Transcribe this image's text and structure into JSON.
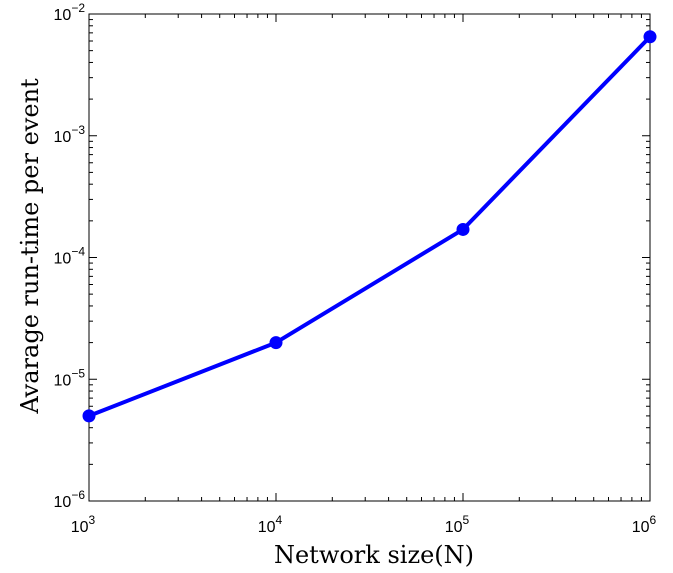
{
  "chart_data": {
    "type": "line",
    "title": "",
    "xlabel": "Network size(N)",
    "ylabel": "Avarage run-time per event",
    "xscale": "log",
    "yscale": "log",
    "xlim": [
      1000,
      1000000
    ],
    "ylim": [
      1e-06,
      0.01
    ],
    "grid": false,
    "legend": "none",
    "x_ticks": [
      {
        "value": 1000,
        "base": "10",
        "exp": "3"
      },
      {
        "value": 10000,
        "base": "10",
        "exp": "4"
      },
      {
        "value": 100000,
        "base": "10",
        "exp": "5"
      },
      {
        "value": 1000000,
        "base": "10",
        "exp": "6"
      }
    ],
    "y_ticks": [
      {
        "value": 1e-06,
        "base": "10",
        "exp": "−6"
      },
      {
        "value": 1e-05,
        "base": "10",
        "exp": "−5"
      },
      {
        "value": 0.0001,
        "base": "10",
        "exp": "−4"
      },
      {
        "value": 0.001,
        "base": "10",
        "exp": "−3"
      },
      {
        "value": 0.01,
        "base": "10",
        "exp": "−2"
      }
    ],
    "series": [
      {
        "x": [
          1000,
          10000,
          100000,
          1000000
        ],
        "y": [
          5e-06,
          2e-05,
          0.00017,
          0.0065
        ],
        "color": "#0000ff",
        "marker": "circle"
      }
    ]
  }
}
